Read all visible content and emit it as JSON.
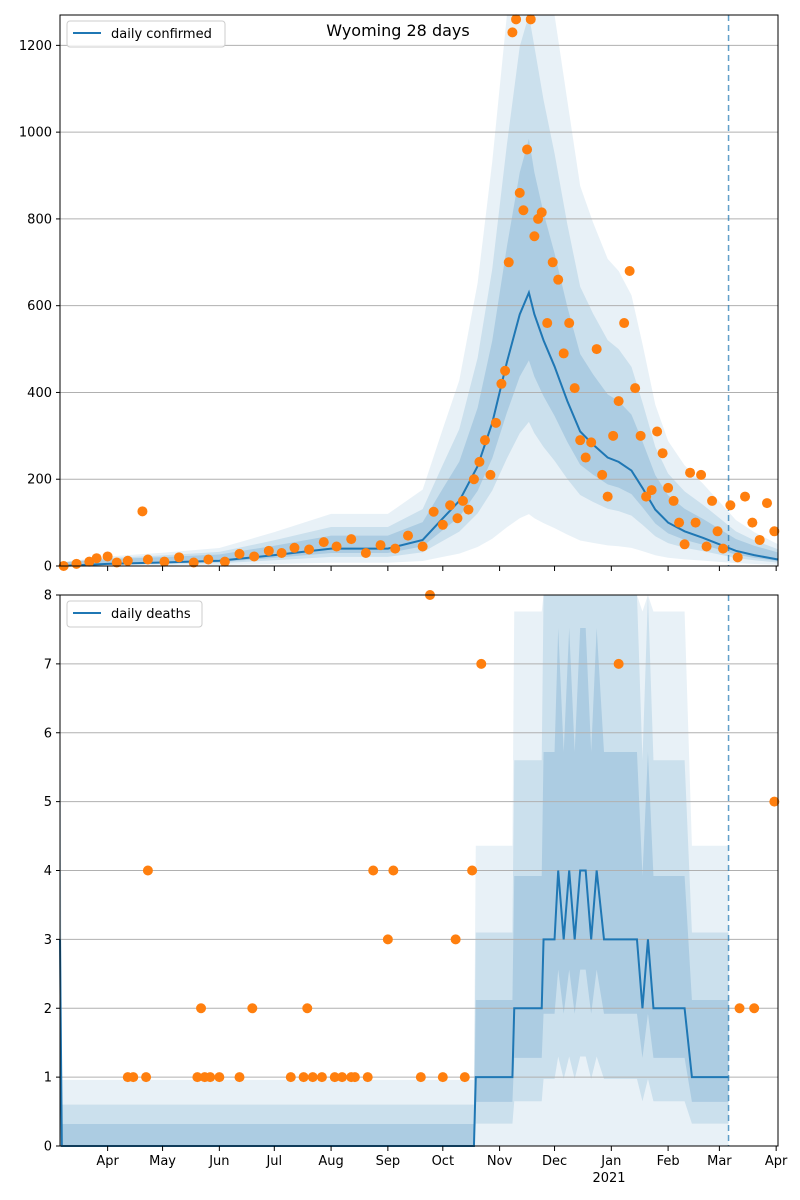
{
  "title": "Wyoming 28 days",
  "colors": {
    "line": "#1f77b4",
    "points": "#ff7f0e",
    "band": "#1f77b4",
    "grid": "#b0b0b0",
    "marker_line": "#1f77b4"
  },
  "x_axis": {
    "month_ticks": [
      "Apr",
      "May",
      "Jun",
      "Jul",
      "Aug",
      "Sep",
      "Oct",
      "Nov",
      "Dec",
      "Jan",
      "Feb",
      "Mar",
      "Apr"
    ],
    "year_label": "2021",
    "start": "2020-03-06",
    "end": "2021-04-02",
    "marker_date": "2021-03-06"
  },
  "chart_data": [
    {
      "type": "line",
      "legend": "daily confirmed",
      "legend_position": "upper-left",
      "ylim": [
        0,
        1270
      ],
      "yticks": [
        "0",
        "200",
        "400",
        "600",
        "800",
        "1000",
        "1200"
      ],
      "grid": "horizontal",
      "line_series": {
        "name": "daily confirmed",
        "x": [
          "2020-03-06",
          "2020-04-01",
          "2020-05-01",
          "2020-06-01",
          "2020-07-01",
          "2020-08-01",
          "2020-09-01",
          "2020-09-20",
          "2020-10-01",
          "2020-10-10",
          "2020-10-20",
          "2020-10-28",
          "2020-11-05",
          "2020-11-12",
          "2020-11-17",
          "2020-11-20",
          "2020-11-25",
          "2020-12-01",
          "2020-12-08",
          "2020-12-15",
          "2020-12-22",
          "2020-12-30",
          "2021-01-05",
          "2021-01-12",
          "2021-01-18",
          "2021-01-25",
          "2021-02-01",
          "2021-02-10",
          "2021-02-20",
          "2021-03-01",
          "2021-03-10",
          "2021-03-20",
          "2021-04-02"
        ],
        "y": [
          0,
          5,
          8,
          12,
          25,
          40,
          40,
          60,
          110,
          150,
          230,
          330,
          470,
          580,
          630,
          580,
          520,
          460,
          380,
          310,
          280,
          250,
          240,
          220,
          180,
          130,
          100,
          80,
          65,
          50,
          35,
          25,
          15
        ]
      },
      "points": {
        "name": "observed",
        "x": [
          "2020-03-08",
          "2020-03-15",
          "2020-03-22",
          "2020-03-26",
          "2020-04-01",
          "2020-04-06",
          "2020-04-12",
          "2020-04-20",
          "2020-04-23",
          "2020-05-02",
          "2020-05-10",
          "2020-05-18",
          "2020-05-26",
          "2020-06-04",
          "2020-06-12",
          "2020-06-20",
          "2020-06-28",
          "2020-07-05",
          "2020-07-12",
          "2020-07-20",
          "2020-07-28",
          "2020-08-04",
          "2020-08-12",
          "2020-08-20",
          "2020-08-28",
          "2020-09-05",
          "2020-09-12",
          "2020-09-20",
          "2020-09-26",
          "2020-10-01",
          "2020-10-05",
          "2020-10-09",
          "2020-10-12",
          "2020-10-15",
          "2020-10-18",
          "2020-10-21",
          "2020-10-24",
          "2020-10-27",
          "2020-10-30",
          "2020-11-02",
          "2020-11-04",
          "2020-11-06",
          "2020-11-08",
          "2020-11-10",
          "2020-11-12",
          "2020-11-14",
          "2020-11-16",
          "2020-11-18",
          "2020-11-20",
          "2020-11-22",
          "2020-11-24",
          "2020-11-27",
          "2020-11-30",
          "2020-12-03",
          "2020-12-06",
          "2020-12-09",
          "2020-12-12",
          "2020-12-15",
          "2020-12-18",
          "2020-12-21",
          "2020-12-24",
          "2020-12-27",
          "2020-12-30",
          "2021-01-02",
          "2021-01-05",
          "2021-01-08",
          "2021-01-11",
          "2021-01-14",
          "2021-01-17",
          "2021-01-20",
          "2021-01-23",
          "2021-01-26",
          "2021-01-29",
          "2021-02-01",
          "2021-02-04",
          "2021-02-07",
          "2021-02-10",
          "2021-02-13",
          "2021-02-16",
          "2021-02-19",
          "2021-02-22",
          "2021-02-25",
          "2021-02-28",
          "2021-03-03",
          "2021-03-07",
          "2021-03-11",
          "2021-03-15",
          "2021-03-19",
          "2021-03-23",
          "2021-03-27",
          "2021-03-31"
        ],
        "y": [
          0,
          5,
          10,
          18,
          22,
          8,
          12,
          126,
          15,
          10,
          20,
          8,
          15,
          10,
          28,
          22,
          35,
          30,
          42,
          38,
          55,
          45,
          62,
          30,
          48,
          40,
          70,
          45,
          125,
          95,
          140,
          110,
          150,
          130,
          200,
          240,
          290,
          210,
          330,
          420,
          450,
          700,
          1230,
          1260,
          860,
          820,
          960,
          1260,
          760,
          800,
          815,
          560,
          700,
          660,
          490,
          560,
          410,
          290,
          250,
          285,
          500,
          210,
          160,
          300,
          380,
          560,
          680,
          410,
          300,
          160,
          175,
          310,
          260,
          180,
          150,
          100,
          50,
          215,
          100,
          210,
          45,
          150,
          80,
          40,
          140,
          20,
          160,
          100,
          60,
          145,
          80
        ]
      }
    },
    {
      "type": "line",
      "legend": "daily deaths",
      "legend_position": "upper-left",
      "ylim": [
        0,
        8
      ],
      "yticks": [
        "0",
        "1",
        "2",
        "3",
        "4",
        "5",
        "6",
        "7",
        "8"
      ],
      "grid": "horizontal",
      "line_series": {
        "name": "daily deaths",
        "x": [
          "2020-03-06",
          "2020-03-07",
          "2020-10-18",
          "2020-10-19",
          "2020-10-20",
          "2020-11-08",
          "2020-11-09",
          "2020-11-24",
          "2020-11-25",
          "2020-12-01",
          "2020-12-03",
          "2020-12-06",
          "2020-12-09",
          "2020-12-12",
          "2020-12-15",
          "2020-12-18",
          "2020-12-21",
          "2020-12-24",
          "2020-12-28",
          "2021-01-15",
          "2021-01-18",
          "2021-01-21",
          "2021-01-24",
          "2021-02-01",
          "2021-02-10",
          "2021-02-14",
          "2021-02-15",
          "2021-02-16",
          "2021-03-06"
        ],
        "y": [
          3,
          0,
          0,
          1,
          1,
          1,
          2,
          2,
          3,
          3,
          4,
          3,
          4,
          3,
          4,
          4,
          3,
          4,
          3,
          3,
          2,
          3,
          2,
          2,
          2,
          1,
          1,
          1,
          1
        ]
      },
      "points": {
        "name": "observed",
        "x": [
          "2020-04-12",
          "2020-04-15",
          "2020-04-22",
          "2020-04-23",
          "2020-05-20",
          "2020-05-22",
          "2020-05-24",
          "2020-05-27",
          "2020-06-01",
          "2020-06-12",
          "2020-06-19",
          "2020-07-10",
          "2020-07-17",
          "2020-07-19",
          "2020-07-22",
          "2020-07-27",
          "2020-08-03",
          "2020-08-07",
          "2020-08-12",
          "2020-08-14",
          "2020-08-21",
          "2020-08-24",
          "2020-09-01",
          "2020-09-04",
          "2020-09-19",
          "2020-09-24",
          "2020-10-01",
          "2020-10-08",
          "2020-10-13",
          "2020-10-17",
          "2020-10-22",
          "2021-01-05",
          "2021-03-12",
          "2021-03-20",
          "2021-03-31"
        ],
        "y": [
          1,
          1,
          1,
          4,
          1,
          2,
          1,
          1,
          1,
          1,
          2,
          1,
          1,
          2,
          1,
          1,
          1,
          1,
          1,
          1,
          1,
          4,
          3,
          4,
          1,
          8,
          1,
          3,
          1,
          4,
          7,
          7,
          2,
          2,
          5
        ]
      }
    }
  ]
}
